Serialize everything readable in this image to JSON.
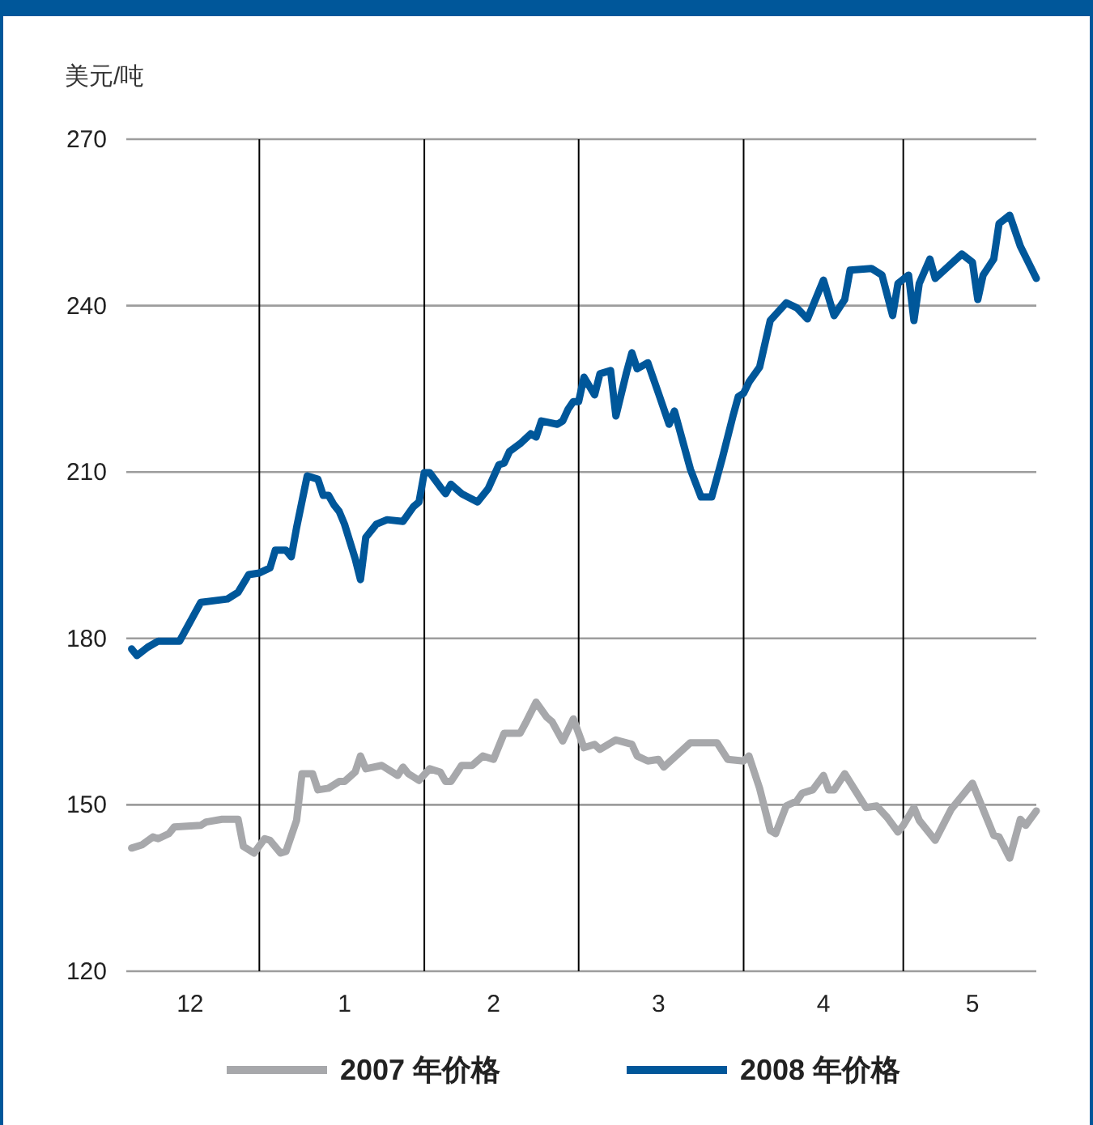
{
  "chart_data": {
    "type": "line",
    "ylabel": "美元/吨",
    "xlim": [
      "2007-12-07",
      "2008-05-26"
    ],
    "xticks": [
      {
        "value": "2007-12-19",
        "label": "12"
      },
      {
        "value": "2008-01-17",
        "label": "1"
      },
      {
        "value": "2008-02-14",
        "label": "2"
      },
      {
        "value": "2008-03-16",
        "label": "3"
      },
      {
        "value": "2008-04-16",
        "label": "4"
      },
      {
        "value": "2008-05-14",
        "label": "5"
      }
    ],
    "ylim": [
      120,
      270
    ],
    "yticks": [
      120,
      150,
      180,
      210,
      240,
      270
    ],
    "grid": "y",
    "legend": "bottom",
    "marker": "none",
    "line_style": "solid",
    "ref_lines": [
      {
        "axis": "x",
        "value": "2008-01-01",
        "color": "#000000"
      },
      {
        "axis": "x",
        "value": "2008-02-01",
        "color": "#000000"
      },
      {
        "axis": "x",
        "value": "2008-03-01",
        "color": "#000000"
      },
      {
        "axis": "x",
        "value": "2008-04-01",
        "color": "#000000"
      },
      {
        "axis": "x",
        "value": "2008-05-01",
        "color": "#000000"
      }
    ],
    "series": [
      {
        "name": "2007 年价格",
        "color": "#a7a8ab",
        "x": [
          "2007-12-08",
          "2007-12-10",
          "2007-12-12",
          "2007-12-13",
          "2007-12-15",
          "2007-12-16",
          "2007-12-21",
          "2007-12-22",
          "2007-12-25",
          "2007-12-28",
          "2007-12-29",
          "2007-12-31",
          "2008-01-02",
          "2008-01-03",
          "2008-01-05",
          "2008-01-06",
          "2008-01-08",
          "2008-01-09",
          "2008-01-11",
          "2008-01-12",
          "2008-01-14",
          "2008-01-16",
          "2008-01-17",
          "2008-01-19",
          "2008-01-20",
          "2008-01-21",
          "2008-01-24",
          "2008-01-27",
          "2008-01-28",
          "2008-01-29",
          "2008-01-31",
          "2008-02-02",
          "2008-02-04",
          "2008-02-05",
          "2008-02-06",
          "2008-02-08",
          "2008-02-10",
          "2008-02-12",
          "2008-02-14",
          "2008-02-16",
          "2008-02-19",
          "2008-02-20",
          "2008-02-22",
          "2008-02-24",
          "2008-02-25",
          "2008-02-27",
          "2008-02-29",
          "2008-03-02",
          "2008-03-04",
          "2008-03-05",
          "2008-03-08",
          "2008-03-11",
          "2008-03-12",
          "2008-03-14",
          "2008-03-16",
          "2008-03-17",
          "2008-03-22",
          "2008-03-27",
          "2008-03-29",
          "2008-04-01",
          "2008-04-02",
          "2008-04-04",
          "2008-04-06",
          "2008-04-07",
          "2008-04-09",
          "2008-04-11",
          "2008-04-12",
          "2008-04-14",
          "2008-04-16",
          "2008-04-17",
          "2008-04-18",
          "2008-04-20",
          "2008-04-24",
          "2008-04-26",
          "2008-04-28",
          "2008-04-30",
          "2008-05-01",
          "2008-05-03",
          "2008-05-04",
          "2008-05-07",
          "2008-05-10",
          "2008-05-14",
          "2008-05-18",
          "2008-05-19",
          "2008-05-21",
          "2008-05-23",
          "2008-05-24",
          "2008-05-26"
        ],
        "values": [
          142.2,
          142.8,
          144.2,
          143.9,
          144.8,
          146.0,
          146.3,
          146.9,
          147.4,
          147.4,
          142.5,
          141.3,
          143.9,
          143.6,
          141.3,
          141.6,
          147.2,
          155.6,
          155.6,
          152.7,
          153.0,
          154.2,
          154.2,
          155.9,
          158.8,
          156.5,
          157.1,
          155.3,
          156.8,
          155.6,
          154.4,
          156.5,
          155.9,
          154.2,
          154.2,
          157.1,
          157.1,
          158.8,
          158.2,
          162.9,
          162.9,
          164.7,
          168.5,
          165.8,
          165.0,
          161.5,
          165.5,
          160.3,
          160.9,
          160.0,
          161.7,
          160.9,
          158.8,
          157.9,
          158.2,
          156.8,
          161.2,
          161.2,
          158.2,
          157.9,
          158.8,
          153.0,
          145.4,
          144.8,
          149.8,
          150.7,
          152.1,
          152.7,
          155.3,
          152.7,
          152.7,
          155.6,
          149.5,
          149.8,
          147.7,
          145.1,
          146.3,
          149.5,
          147.2,
          143.6,
          149.2,
          153.9,
          144.5,
          144.2,
          140.4,
          147.4,
          146.3,
          148.9
        ]
      },
      {
        "name": "2008 年价格",
        "color": "#00579a",
        "x": [
          "2007-12-08",
          "2007-12-09",
          "2007-12-11",
          "2007-12-13",
          "2007-12-17",
          "2007-12-19",
          "2007-12-21",
          "2007-12-26",
          "2007-12-28",
          "2007-12-30",
          "2008-01-01",
          "2008-01-03",
          "2008-01-04",
          "2008-01-06",
          "2008-01-07",
          "2008-01-08",
          "2008-01-10",
          "2008-01-12",
          "2008-01-13",
          "2008-01-14",
          "2008-01-15",
          "2008-01-16",
          "2008-01-17",
          "2008-01-19",
          "2008-01-20",
          "2008-01-21",
          "2008-01-23",
          "2008-01-25",
          "2008-01-28",
          "2008-01-30",
          "2008-01-31",
          "2008-02-01",
          "2008-02-02",
          "2008-02-04",
          "2008-02-05",
          "2008-02-06",
          "2008-02-08",
          "2008-02-11",
          "2008-02-13",
          "2008-02-15",
          "2008-02-16",
          "2008-02-17",
          "2008-02-19",
          "2008-02-21",
          "2008-02-22",
          "2008-02-23",
          "2008-02-26",
          "2008-02-27",
          "2008-02-28",
          "2008-02-29",
          "2008-03-01",
          "2008-03-02",
          "2008-03-04",
          "2008-03-05",
          "2008-03-07",
          "2008-03-08",
          "2008-03-10",
          "2008-03-11",
          "2008-03-12",
          "2008-03-14",
          "2008-03-16",
          "2008-03-18",
          "2008-03-19",
          "2008-03-22",
          "2008-03-24",
          "2008-03-26",
          "2008-03-28",
          "2008-03-30",
          "2008-03-31",
          "2008-04-01",
          "2008-04-02",
          "2008-04-04",
          "2008-04-06",
          "2008-04-09",
          "2008-04-11",
          "2008-04-13",
          "2008-04-16",
          "2008-04-18",
          "2008-04-20",
          "2008-04-21",
          "2008-04-25",
          "2008-04-27",
          "2008-04-29",
          "2008-04-30",
          "2008-05-02",
          "2008-05-03",
          "2008-05-04",
          "2008-05-06",
          "2008-05-07",
          "2008-05-12",
          "2008-05-14",
          "2008-05-15",
          "2008-05-16",
          "2008-05-18",
          "2008-05-19",
          "2008-05-21",
          "2008-05-23",
          "2008-05-26"
        ],
        "values": [
          178.1,
          176.9,
          178.4,
          179.5,
          179.5,
          183.0,
          186.5,
          187.1,
          188.3,
          191.5,
          191.8,
          192.7,
          195.9,
          195.9,
          194.7,
          200.0,
          209.3,
          208.7,
          205.8,
          205.8,
          204.1,
          202.9,
          200.6,
          194.4,
          190.6,
          198.2,
          200.6,
          201.4,
          201.1,
          203.8,
          204.6,
          209.9,
          209.9,
          207.3,
          206.1,
          207.8,
          206.1,
          204.6,
          207.0,
          211.3,
          211.6,
          213.7,
          215.1,
          216.9,
          216.3,
          219.2,
          218.6,
          219.2,
          221.3,
          222.7,
          222.7,
          227.1,
          223.9,
          227.7,
          228.3,
          220.1,
          228.0,
          231.5,
          228.6,
          229.7,
          224.2,
          218.6,
          221.0,
          210.5,
          205.5,
          205.5,
          212.5,
          220.1,
          223.6,
          224.2,
          226.2,
          228.9,
          237.3,
          240.5,
          239.6,
          237.6,
          244.6,
          238.2,
          241.1,
          246.4,
          246.7,
          245.5,
          238.2,
          244.0,
          245.5,
          237.3,
          244.0,
          248.4,
          244.9,
          249.3,
          247.8,
          241.1,
          245.5,
          248.4,
          254.8,
          256.3,
          250.7,
          244.9
        ]
      }
    ]
  }
}
